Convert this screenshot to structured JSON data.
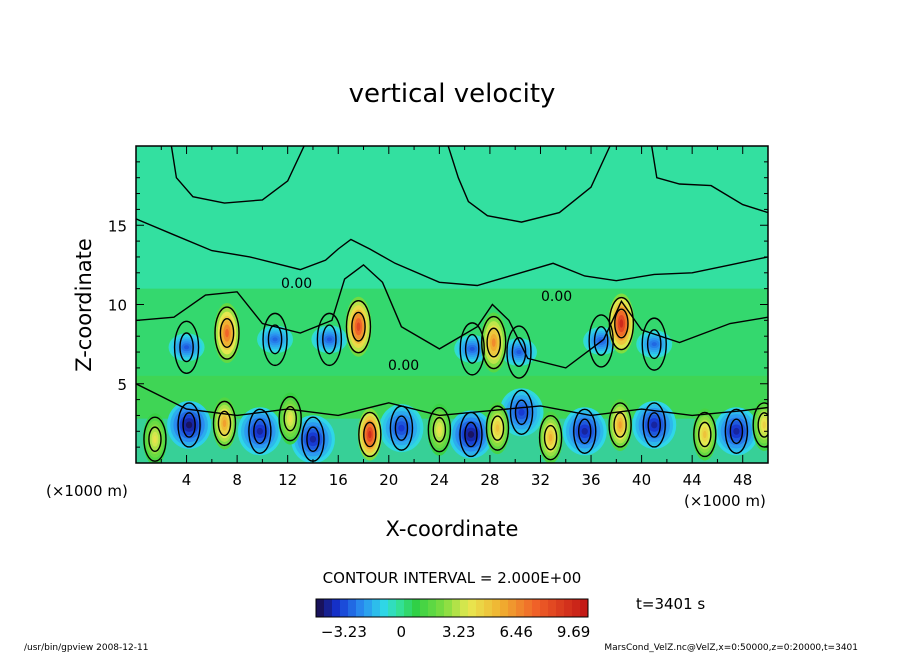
{
  "chart_data": {
    "type": "heatmap",
    "title": "vertical velocity",
    "xlabel": "X-coordinate",
    "ylabel": "Z-coordinate",
    "x_unit": "(×1000 m)",
    "y_unit": "(×1000 m)",
    "xlim": [
      0,
      50
    ],
    "ylim": [
      0,
      20
    ],
    "x_ticks": [
      "4",
      "8",
      "12",
      "16",
      "20",
      "24",
      "28",
      "32",
      "36",
      "40",
      "44",
      "48"
    ],
    "y_ticks": [
      "5",
      "10",
      "15"
    ],
    "contour_labels": [
      "0.00",
      "0.00",
      "0.00"
    ],
    "contour_interval_text": "CONTOUR INTERVAL = 2.000E+00",
    "time_text": "t=3401 s",
    "colorbar": {
      "tick_labels": [
        "-3.23",
        "0",
        "3.23",
        "6.46",
        "9.69"
      ],
      "min": -4.8,
      "max": 10.5
    },
    "updraft_cells": [
      {
        "x": 7.2,
        "z": 8.2,
        "w": 7.5
      },
      {
        "x": 17.6,
        "z": 8.6,
        "w": 8.5
      },
      {
        "x": 28.3,
        "z": 7.6,
        "w": 6.5
      },
      {
        "x": 38.4,
        "z": 8.8,
        "w": 9.7
      },
      {
        "x": 18.5,
        "z": 1.8,
        "w": 9.5
      },
      {
        "x": 7.0,
        "z": 2.5,
        "w": 6.0
      },
      {
        "x": 28.6,
        "z": 2.2,
        "w": 5.0
      },
      {
        "x": 38.3,
        "z": 2.4,
        "w": 6.0
      },
      {
        "x": 32.8,
        "z": 1.6,
        "w": 5.5
      },
      {
        "x": 45.0,
        "z": 1.8,
        "w": 5.0
      },
      {
        "x": 49.7,
        "z": 2.4,
        "w": 4.5
      },
      {
        "x": 1.5,
        "z": 1.5,
        "w": 4.0
      },
      {
        "x": 12.2,
        "z": 2.8,
        "w": 4.0
      },
      {
        "x": 24.0,
        "z": 2.1,
        "w": 4.0
      }
    ],
    "downdraft_cells": [
      {
        "x": 4.2,
        "z": 2.4,
        "w": -4.5
      },
      {
        "x": 9.8,
        "z": 2.0,
        "w": -4.0
      },
      {
        "x": 14.0,
        "z": 1.5,
        "w": -4.0
      },
      {
        "x": 21.0,
        "z": 2.2,
        "w": -3.5
      },
      {
        "x": 26.5,
        "z": 1.8,
        "w": -4.5
      },
      {
        "x": 30.5,
        "z": 3.2,
        "w": -3.5
      },
      {
        "x": 35.5,
        "z": 2.0,
        "w": -4.0
      },
      {
        "x": 41.0,
        "z": 2.4,
        "w": -4.0
      },
      {
        "x": 47.5,
        "z": 2.0,
        "w": -4.0
      },
      {
        "x": 4.0,
        "z": 7.3,
        "w": -3.0
      },
      {
        "x": 11.0,
        "z": 7.8,
        "w": -2.8
      },
      {
        "x": 15.3,
        "z": 7.8,
        "w": -3.0
      },
      {
        "x": 26.6,
        "z": 7.2,
        "w": -3.0
      },
      {
        "x": 30.3,
        "z": 7.0,
        "w": -3.0
      },
      {
        "x": 36.8,
        "z": 7.7,
        "w": -3.0
      },
      {
        "x": 41.0,
        "z": 7.5,
        "w": -2.8
      }
    ]
  },
  "footer": {
    "left": "/usr/bin/gpview   2008-12-11",
    "right": "MarsCond_VelZ.nc@VelZ,x=0:50000,z=0:20000,t=3401"
  }
}
